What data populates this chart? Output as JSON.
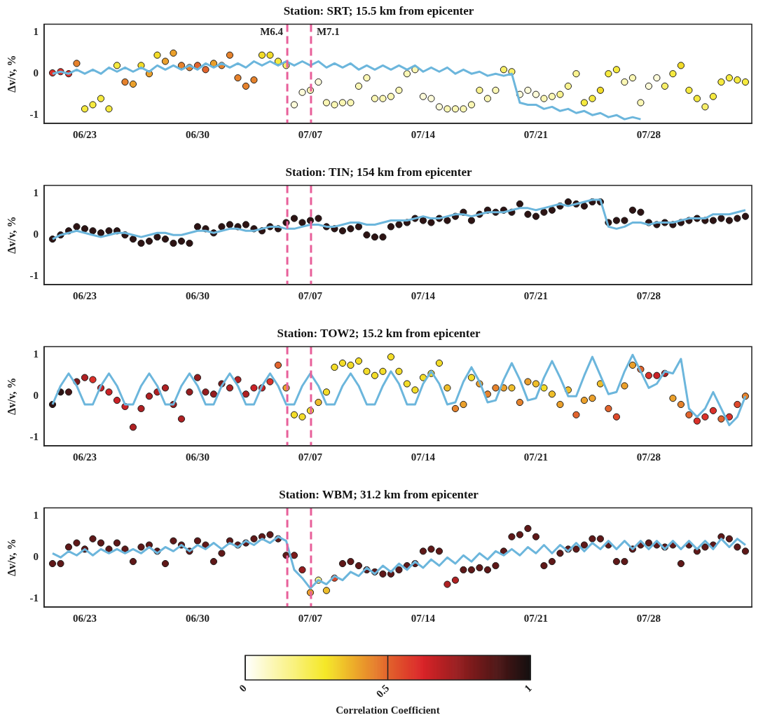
{
  "chart_data": [
    {
      "type": "scatter",
      "title": "Station: SRT; 15.5 km from epicenter",
      "ylabel": "Δv/v, %",
      "x": [
        "--06-21T00:00",
        "--06-21T12:00",
        "--06-22T00:00",
        "--06-22T12:00",
        "--06-23T00:00",
        "--06-23T12:00",
        "--06-24T00:00",
        "--06-24T12:00",
        "--06-25T00:00",
        "--06-25T12:00",
        "--06-26T00:00",
        "--06-26T12:00",
        "--06-27T00:00",
        "--06-27T12:00",
        "--06-28T00:00",
        "--06-28T12:00",
        "--06-29T00:00",
        "--06-29T12:00",
        "--06-30T00:00",
        "--06-30T12:00",
        "--07-01T00:00",
        "--07-01T12:00",
        "--07-02T00:00",
        "--07-02T12:00",
        "--07-03T00:00",
        "--07-03T12:00",
        "--07-04T00:00",
        "--07-04T12:00",
        "--07-05T00:00",
        "--07-05T12:00",
        "--07-06T00:00",
        "--07-06T12:00",
        "--07-07T00:00",
        "--07-07T12:00",
        "--07-08T00:00",
        "--07-08T12:00",
        "--07-09T00:00",
        "--07-09T12:00",
        "--07-10T00:00",
        "--07-10T12:00",
        "--07-11T00:00",
        "--07-11T12:00",
        "--07-12T00:00",
        "--07-12T12:00",
        "--07-13T00:00",
        "--07-13T12:00",
        "--07-14T00:00",
        "--07-14T12:00",
        "--07-15T00:00",
        "--07-15T12:00",
        "--07-16T00:00",
        "--07-16T12:00",
        "--07-17T00:00",
        "--07-17T12:00",
        "--07-18T00:00",
        "--07-18T12:00",
        "--07-19T00:00",
        "--07-19T12:00",
        "--07-20T00:00",
        "--07-20T12:00",
        "--07-21T00:00",
        "--07-21T12:00",
        "--07-22T00:00",
        "--07-22T12:00",
        "--07-23T00:00",
        "--07-23T12:00",
        "--07-24T00:00",
        "--07-24T12:00",
        "--07-25T00:00",
        "--07-25T12:00",
        "--07-26T00:00",
        "--07-26T12:00",
        "--07-27T00:00",
        "--07-27T12:00",
        "--07-28T00:00",
        "--07-28T12:00",
        "--07-29T00:00",
        "--07-29T12:00",
        "--07-30T00:00",
        "--07-30T12:00",
        "--07-31T00:00",
        "--07-31T12:00",
        "--08-01T00:00",
        "--08-01T12:00",
        "--08-02T00:00",
        "--08-02T12:00",
        "--08-03T00:00"
      ],
      "series": [
        {
          "marker": "circle",
          "values": [
            0.02,
            0.05,
            0,
            0.25,
            -0.85,
            -0.75,
            -0.6,
            -0.85,
            0.2,
            -0.2,
            -0.25,
            0.2,
            0,
            0.45,
            0.3,
            0.5,
            0.2,
            0.15,
            0.2,
            0.1,
            0.25,
            0.2,
            0.45,
            -0.1,
            -0.3,
            -0.15,
            0.45,
            0.45,
            0.3,
            0.2,
            -0.75,
            -0.45,
            -0.4,
            -0.2,
            -0.7,
            -0.75,
            -0.7,
            -0.7,
            -0.3,
            -0.1,
            -0.6,
            -0.6,
            -0.55,
            -0.4,
            0,
            0.1,
            -0.55,
            -0.6,
            -0.8,
            -0.85,
            -0.85,
            -0.85,
            -0.75,
            -0.4,
            -0.6,
            -0.4,
            0.1,
            0.05,
            -0.5,
            -0.4,
            -0.5,
            -0.6,
            -0.55,
            -0.5,
            -0.3,
            0,
            -0.7,
            -0.6,
            -0.4,
            0,
            0.1,
            -0.2,
            -0.1,
            -0.7,
            -0.3,
            -0.1,
            -0.3,
            0,
            0.2,
            -0.4,
            -0.6,
            -0.8,
            -0.55,
            -0.2,
            -0.1,
            -0.15,
            -0.2
          ],
          "colors": [
            "#db3029",
            "#db3029",
            "#db3029",
            "#e6822c",
            "#f6ea3f",
            "#f6ea3f",
            "#f6ea3f",
            "#f6ea3f",
            "#f6ea3f",
            "#e6822c",
            "#eba02b",
            "#f3dc28",
            "#eba02b",
            "#f3dc28",
            "#eba02b",
            "#eba02b",
            "#e6822c",
            "#e6822c",
            "#e2642d",
            "#e2642d",
            "#eba02b",
            "#e6822c",
            "#e6822c",
            "#e6822c",
            "#e6822c",
            "#e6822c",
            "#f3dc28",
            "#f3dc28",
            "#f6ea3f",
            "#f8ef69",
            "#fdfbd9",
            "#fdfbd9",
            "#fbf7b4",
            "#fdfbd9",
            "#fbf7b4",
            "#fbf7b4",
            "#fbf7b4",
            "#fbf7b4",
            "#fbf7b4",
            "#fbf7b4",
            "#fbf7b4",
            "#fbf7b4",
            "#fbf7b4",
            "#fbf7b4",
            "#fbf7b4",
            "#fbf7b4",
            "#fdfbd9",
            "#fdfbd9",
            "#fdfbd9",
            "#fbf7b4",
            "#fbf7b4",
            "#fbf7b4",
            "#fbf7b4",
            "#faf38f",
            "#fbf7b4",
            "#fbf7b4",
            "#f8ef69",
            "#f8ef69",
            "#fdfbd9",
            "#fdfbd9",
            "#fdfbd9",
            "#fbf7b4",
            "#fbf7b4",
            "#faf38f",
            "#faf38f",
            "#faf38f",
            "#f6ea3f",
            "#f6ea3f",
            "#f3dc28",
            "#f6ea3f",
            "#f6ea3f",
            "#fbf7b4",
            "#fbf7b4",
            "#fbf7b4",
            "#fdfbd9",
            "#fdfbd9",
            "#f8ef69",
            "#f6ea3f",
            "#f3dc28",
            "#f6ea3f",
            "#f6ea3f",
            "#f8ef69",
            "#f6ea3f",
            "#f6ea3f",
            "#f6ea3f",
            "#f6ea3f",
            "#f6ea3f"
          ]
        },
        {
          "type": "line",
          "color": "#6cb6dc",
          "values": [
            0,
            0.05,
            0,
            0.1,
            0,
            0.1,
            0,
            0.15,
            0.05,
            0.15,
            0.05,
            0.15,
            0.05,
            0.2,
            0.1,
            0.2,
            0.1,
            0.2,
            0.1,
            0.25,
            0.15,
            0.25,
            0.15,
            0.25,
            0.15,
            0.3,
            0.2,
            0.3,
            0.2,
            0.3,
            0.2,
            0.3,
            0.2,
            0.3,
            0.15,
            0.25,
            0.15,
            0.25,
            0.1,
            0.2,
            0.1,
            0.2,
            0.1,
            0.2,
            0.1,
            0.2,
            0.05,
            0.15,
            0.05,
            0.15,
            0,
            0.1,
            0,
            0.05,
            -0.05,
            0,
            -0.05,
            0,
            -0.7,
            -0.75,
            -0.75,
            -0.85,
            -0.8,
            -0.9,
            -0.85,
            -0.95,
            -0.9,
            -1,
            -0.95,
            -1.05,
            -1,
            -1.1,
            -1.05,
            -1.1,
            null,
            null,
            null,
            null,
            null,
            null,
            null,
            null,
            null,
            null,
            null,
            null,
            null
          ]
        }
      ],
      "xlim": [
        "--06-20T11:30",
        "--08-03T09:30"
      ],
      "xticks": [
        {
          "value": "--06-23",
          "label": "06/23"
        },
        {
          "value": "--06-30",
          "label": "06/30"
        },
        {
          "value": "--07-07",
          "label": "07/07"
        },
        {
          "value": "--07-14",
          "label": "07/14"
        },
        {
          "value": "--07-21",
          "label": "07/21"
        },
        {
          "value": "--07-28",
          "label": "07/28"
        }
      ],
      "ylim": [
        -1.2,
        1.2
      ],
      "yticks": [
        -1,
        0,
        1
      ],
      "ref_lines": [
        {
          "axis": "x",
          "value": "--07-05T13:40",
          "label": "M6.4",
          "color": "#e8609a",
          "line_style": "dashed"
        },
        {
          "axis": "x",
          "value": "--07-07T01:00",
          "label": "M7.1",
          "color": "#e8609a",
          "line_style": "dashed"
        }
      ]
    },
    {
      "type": "scatter",
      "title": "Station: TIN; 154 km from epicenter",
      "ylabel": "Δv/v, %",
      "x": [
        "--06-21T00:00",
        "--06-21T12:00",
        "--06-22T00:00",
        "--06-22T12:00",
        "--06-23T00:00",
        "--06-23T12:00",
        "--06-24T00:00",
        "--06-24T12:00",
        "--06-25T00:00",
        "--06-25T12:00",
        "--06-26T00:00",
        "--06-26T12:00",
        "--06-27T00:00",
        "--06-27T12:00",
        "--06-28T00:00",
        "--06-28T12:00",
        "--06-29T00:00",
        "--06-29T12:00",
        "--06-30T00:00",
        "--06-30T12:00",
        "--07-01T00:00",
        "--07-01T12:00",
        "--07-02T00:00",
        "--07-02T12:00",
        "--07-03T00:00",
        "--07-03T12:00",
        "--07-04T00:00",
        "--07-04T12:00",
        "--07-05T00:00",
        "--07-05T12:00",
        "--07-06T00:00",
        "--07-06T12:00",
        "--07-07T00:00",
        "--07-07T12:00",
        "--07-08T00:00",
        "--07-08T12:00",
        "--07-09T00:00",
        "--07-09T12:00",
        "--07-10T00:00",
        "--07-10T12:00",
        "--07-11T00:00",
        "--07-11T12:00",
        "--07-12T00:00",
        "--07-12T12:00",
        "--07-13T00:00",
        "--07-13T12:00",
        "--07-14T00:00",
        "--07-14T12:00",
        "--07-15T00:00",
        "--07-15T12:00",
        "--07-16T00:00",
        "--07-16T12:00",
        "--07-17T00:00",
        "--07-17T12:00",
        "--07-18T00:00",
        "--07-18T12:00",
        "--07-19T00:00",
        "--07-19T12:00",
        "--07-20T00:00",
        "--07-20T12:00",
        "--07-21T00:00",
        "--07-21T12:00",
        "--07-22T00:00",
        "--07-22T12:00",
        "--07-23T00:00",
        "--07-23T12:00",
        "--07-24T00:00",
        "--07-24T12:00",
        "--07-25T00:00",
        "--07-25T12:00",
        "--07-26T00:00",
        "--07-26T12:00",
        "--07-27T00:00",
        "--07-27T12:00",
        "--07-28T00:00",
        "--07-28T12:00",
        "--07-29T00:00",
        "--07-29T12:00",
        "--07-30T00:00",
        "--07-30T12:00",
        "--07-31T00:00",
        "--07-31T12:00",
        "--08-01T00:00",
        "--08-01T12:00",
        "--08-02T00:00",
        "--08-02T12:00",
        "--08-03T00:00"
      ],
      "series": [
        {
          "marker": "circle",
          "values": [
            -0.1,
            0,
            0.1,
            0.2,
            0.15,
            0.1,
            0.05,
            0.1,
            0.1,
            0,
            -0.1,
            -0.2,
            -0.15,
            -0.05,
            -0.1,
            -0.2,
            -0.15,
            -0.2,
            0.2,
            0.15,
            0.05,
            0.2,
            0.25,
            0.2,
            0.25,
            0.15,
            0.1,
            0.2,
            0.15,
            0.3,
            0.4,
            0.3,
            0.35,
            0.4,
            0.2,
            0.15,
            0.1,
            0.15,
            0.2,
            0,
            -0.05,
            -0.05,
            0.2,
            0.25,
            0.3,
            0.4,
            0.35,
            0.3,
            0.4,
            0.35,
            0.45,
            0.55,
            0.35,
            0.5,
            0.6,
            0.55,
            0.6,
            0.55,
            0.75,
            0.5,
            0.45,
            0.55,
            0.6,
            0.7,
            0.8,
            0.75,
            0.7,
            0.8,
            0.8,
            0.3,
            0.35,
            0.35,
            0.6,
            0.55,
            0.3,
            0.25,
            0.3,
            0.25,
            0.3,
            0.35,
            0.4,
            0.35,
            0.35,
            0.4,
            0.35,
            0.4,
            0.45
          ],
          "color": "#2d1313"
        },
        {
          "type": "line",
          "color": "#6cb6dc",
          "values": [
            -0.1,
            0,
            0.05,
            0.1,
            0.05,
            0,
            -0.05,
            0,
            0.05,
            0.05,
            0,
            -0.05,
            0,
            0.05,
            0.05,
            0,
            0,
            0.05,
            0.1,
            0.1,
            0.05,
            0.1,
            0.15,
            0.15,
            0.1,
            0.1,
            0.15,
            0.2,
            0.2,
            0.15,
            0.15,
            0.2,
            0.25,
            0.25,
            0.2,
            0.2,
            0.25,
            0.3,
            0.3,
            0.25,
            0.25,
            0.3,
            0.35,
            0.35,
            0.35,
            0.4,
            0.45,
            0.4,
            0.4,
            0.45,
            0.5,
            0.5,
            0.45,
            0.5,
            0.55,
            0.55,
            0.55,
            0.6,
            0.65,
            0.65,
            0.6,
            0.65,
            0.7,
            0.75,
            0.7,
            0.75,
            0.8,
            0.85,
            0.85,
            0.2,
            0.15,
            0.2,
            0.3,
            0.3,
            0.25,
            0.3,
            0.3,
            0.3,
            0.35,
            0.4,
            0.4,
            0.4,
            0.5,
            0.5,
            0.5,
            0.55,
            0.6
          ]
        }
      ],
      "xlim": [
        "--06-20T11:30",
        "--08-03T09:30"
      ],
      "xticks": [
        {
          "value": "--06-23",
          "label": "06/23"
        },
        {
          "value": "--06-30",
          "label": "06/30"
        },
        {
          "value": "--07-07",
          "label": "07/07"
        },
        {
          "value": "--07-14",
          "label": "07/14"
        },
        {
          "value": "--07-21",
          "label": "07/21"
        },
        {
          "value": "--07-28",
          "label": "07/28"
        }
      ],
      "ylim": [
        -1.2,
        1.2
      ],
      "yticks": [
        -1,
        0,
        1
      ],
      "ref_lines": [
        {
          "axis": "x",
          "value": "--07-05T13:40",
          "color": "#e8609a",
          "line_style": "dashed"
        },
        {
          "axis": "x",
          "value": "--07-07T01:00",
          "color": "#e8609a",
          "line_style": "dashed"
        }
      ]
    },
    {
      "type": "scatter",
      "title": "Station: TOW2; 15.2 km from epicenter",
      "ylabel": "Δv/v, %",
      "x": [
        "--06-21T00:00",
        "--06-21T12:00",
        "--06-22T00:00",
        "--06-22T12:00",
        "--06-23T00:00",
        "--06-23T12:00",
        "--06-24T00:00",
        "--06-24T12:00",
        "--06-25T00:00",
        "--06-25T12:00",
        "--06-26T00:00",
        "--06-26T12:00",
        "--06-27T00:00",
        "--06-27T12:00",
        "--06-28T00:00",
        "--06-28T12:00",
        "--06-29T00:00",
        "--06-29T12:00",
        "--06-30T00:00",
        "--06-30T12:00",
        "--07-01T00:00",
        "--07-01T12:00",
        "--07-02T00:00",
        "--07-02T12:00",
        "--07-03T00:00",
        "--07-03T12:00",
        "--07-04T00:00",
        "--07-04T12:00",
        "--07-05T00:00",
        "--07-05T12:00",
        "--07-06T00:00",
        "--07-06T12:00",
        "--07-07T00:00",
        "--07-07T12:00",
        "--07-08T00:00",
        "--07-08T12:00",
        "--07-09T00:00",
        "--07-09T12:00",
        "--07-10T00:00",
        "--07-10T12:00",
        "--07-11T00:00",
        "--07-11T12:00",
        "--07-12T00:00",
        "--07-12T12:00",
        "--07-13T00:00",
        "--07-13T12:00",
        "--07-14T00:00",
        "--07-14T12:00",
        "--07-15T00:00",
        "--07-15T12:00",
        "--07-16T00:00",
        "--07-16T12:00",
        "--07-17T00:00",
        "--07-17T12:00",
        "--07-18T00:00",
        "--07-18T12:00",
        "--07-19T00:00",
        "--07-19T12:00",
        "--07-20T00:00",
        "--07-20T12:00",
        "--07-21T00:00",
        "--07-21T12:00",
        "--07-22T00:00",
        "--07-22T12:00",
        "--07-23T00:00",
        "--07-23T12:00",
        "--07-24T00:00",
        "--07-24T12:00",
        "--07-25T00:00",
        "--07-25T12:00",
        "--07-26T00:00",
        "--07-26T12:00",
        "--07-27T00:00",
        "--07-27T12:00",
        "--07-28T00:00",
        "--07-28T12:00",
        "--07-29T00:00",
        "--07-29T12:00",
        "--07-30T00:00",
        "--07-30T12:00",
        "--07-31T00:00",
        "--07-31T12:00",
        "--08-01T00:00",
        "--08-01T12:00",
        "--08-02T00:00",
        "--08-02T12:00",
        "--08-03T00:00"
      ],
      "series": [
        {
          "marker": "circle",
          "values": [
            -0.2,
            0.1,
            0.1,
            0.35,
            0.45,
            0.4,
            0.2,
            0.1,
            -0.1,
            -0.25,
            -0.75,
            -0.3,
            0,
            0.1,
            0.2,
            -0.2,
            -0.55,
            0.1,
            0.45,
            0.1,
            0.05,
            0.3,
            0.2,
            0.4,
            0.05,
            0.2,
            0.2,
            0.35,
            0.75,
            0.2,
            -0.45,
            -0.5,
            -0.35,
            -0.15,
            0.1,
            0.7,
            0.8,
            0.75,
            0.85,
            0.6,
            0.5,
            0.6,
            0.95,
            0.6,
            0.3,
            0.15,
            0.45,
            0.55,
            0.8,
            0.2,
            -0.3,
            -0.2,
            0.45,
            0.3,
            0.05,
            0.2,
            0.2,
            0.2,
            -0.15,
            0.35,
            0.3,
            0.2,
            0.05,
            -0.2,
            0.15,
            -0.45,
            -0.1,
            -0.05,
            0.3,
            -0.3,
            -0.5,
            0.25,
            0.75,
            0.65,
            0.5,
            0.5,
            0.55,
            -0.05,
            -0.2,
            -0.45,
            -0.6,
            -0.5,
            -0.35,
            -0.55,
            -0.5,
            -0.2,
            0
          ],
          "colors": [
            "#2d1313",
            "#2d1313",
            "#461515",
            "#7a1b1b",
            "#af2022",
            "#db3029",
            "#ca2226",
            "#ca2226",
            "#ca2226",
            "#ca2226",
            "#af2022",
            "#af2022",
            "#af2022",
            "#af2022",
            "#af2022",
            "#951d1f",
            "#af2022",
            "#951d1f",
            "#951d1f",
            "#951d1f",
            "#951d1f",
            "#7a1b1b",
            "#af2022",
            "#af2022",
            "#af2022",
            "#ca2226",
            "#ca2226",
            "#db3029",
            "#e2642d",
            "#eba02b",
            "#f3dc28",
            "#f3dc28",
            "#f3dc28",
            "#efbe2a",
            "#f3dc28",
            "#f3dc28",
            "#f3dc28",
            "#f3dc28",
            "#f3dc28",
            "#f3dc28",
            "#f3dc28",
            "#f3dc28",
            "#f3dc28",
            "#f3dc28",
            "#f3dc28",
            "#f3dc28",
            "#f3dc28",
            "#f3dc28",
            "#f3dc28",
            "#efbe2a",
            "#e6822c",
            "#eba02b",
            "#f3dc28",
            "#eba02b",
            "#e6822c",
            "#e6822c",
            "#eba02b",
            "#efbe2a",
            "#e6822c",
            "#eba02b",
            "#efbe2a",
            "#f3dc28",
            "#efbe2a",
            "#eba02b",
            "#efbe2a",
            "#e2642d",
            "#eba02b",
            "#eba02b",
            "#efbe2a",
            "#e2642d",
            "#df492b",
            "#eba02b",
            "#eba02b",
            "#e2642d",
            "#db3029",
            "#ca2226",
            "#af2022",
            "#eba02b",
            "#e6822c",
            "#e2642d",
            "#db3029",
            "#db3029",
            "#db3029",
            "#e2642d",
            "#db3029",
            "#df492b",
            "#e6822c"
          ]
        },
        {
          "type": "line",
          "color": "#6cb6dc",
          "values": [
            -0.2,
            0.25,
            0.55,
            0.25,
            -0.2,
            -0.2,
            0.25,
            0.55,
            0.25,
            -0.2,
            -0.2,
            0.25,
            0.55,
            0.25,
            -0.2,
            -0.2,
            0.25,
            0.55,
            0.25,
            -0.2,
            -0.2,
            0.25,
            0.55,
            0.25,
            -0.2,
            -0.2,
            0.25,
            0.55,
            0.25,
            -0.2,
            -0.2,
            0.25,
            0.55,
            0.25,
            -0.2,
            -0.2,
            0.25,
            0.55,
            0.25,
            -0.2,
            -0.2,
            0.25,
            0.6,
            0.3,
            -0.2,
            -0.2,
            0.3,
            0.6,
            0.3,
            -0.2,
            -0.15,
            0.35,
            0.7,
            0.35,
            -0.15,
            -0.1,
            0.4,
            0.8,
            0.4,
            -0.1,
            -0.05,
            0.45,
            0.85,
            0.45,
            0,
            0,
            0.5,
            0.95,
            0.5,
            0.05,
            0.1,
            0.6,
            1,
            0.6,
            0.2,
            0.3,
            0.6,
            0.55,
            0.9,
            -0.3,
            -0.5,
            -0.3,
            0.1,
            -0.3,
            -0.7,
            -0.5,
            0
          ]
        }
      ],
      "xlim": [
        "--06-20T11:30",
        "--08-03T09:30"
      ],
      "xticks": [
        {
          "value": "--06-23",
          "label": "06/23"
        },
        {
          "value": "--06-30",
          "label": "06/30"
        },
        {
          "value": "--07-07",
          "label": "07/07"
        },
        {
          "value": "--07-14",
          "label": "07/14"
        },
        {
          "value": "--07-21",
          "label": "07/21"
        },
        {
          "value": "--07-28",
          "label": "07/28"
        }
      ],
      "ylim": [
        -1.2,
        1.2
      ],
      "yticks": [
        -1,
        0,
        1
      ],
      "ref_lines": [
        {
          "axis": "x",
          "value": "--07-05T13:40",
          "color": "#e8609a",
          "line_style": "dashed"
        },
        {
          "axis": "x",
          "value": "--07-07T01:00",
          "color": "#e8609a",
          "line_style": "dashed"
        }
      ]
    },
    {
      "type": "scatter",
      "title": "Station: WBM; 31.2 km from epicenter",
      "ylabel": "Δv/v, %",
      "x": [
        "--06-21T00:00",
        "--06-21T12:00",
        "--06-22T00:00",
        "--06-22T12:00",
        "--06-23T00:00",
        "--06-23T12:00",
        "--06-24T00:00",
        "--06-24T12:00",
        "--06-25T00:00",
        "--06-25T12:00",
        "--06-26T00:00",
        "--06-26T12:00",
        "--06-27T00:00",
        "--06-27T12:00",
        "--06-28T00:00",
        "--06-28T12:00",
        "--06-29T00:00",
        "--06-29T12:00",
        "--06-30T00:00",
        "--06-30T12:00",
        "--07-01T00:00",
        "--07-01T12:00",
        "--07-02T00:00",
        "--07-02T12:00",
        "--07-03T00:00",
        "--07-03T12:00",
        "--07-04T00:00",
        "--07-04T12:00",
        "--07-05T00:00",
        "--07-05T12:00",
        "--07-06T00:00",
        "--07-06T12:00",
        "--07-07T00:00",
        "--07-07T12:00",
        "--07-08T00:00",
        "--07-08T12:00",
        "--07-09T00:00",
        "--07-09T12:00",
        "--07-10T00:00",
        "--07-10T12:00",
        "--07-11T00:00",
        "--07-11T12:00",
        "--07-12T00:00",
        "--07-12T12:00",
        "--07-13T00:00",
        "--07-13T12:00",
        "--07-14T00:00",
        "--07-14T12:00",
        "--07-15T00:00",
        "--07-15T12:00",
        "--07-16T00:00",
        "--07-16T12:00",
        "--07-17T00:00",
        "--07-17T12:00",
        "--07-18T00:00",
        "--07-18T12:00",
        "--07-19T00:00",
        "--07-19T12:00",
        "--07-20T00:00",
        "--07-20T12:00",
        "--07-21T00:00",
        "--07-21T12:00",
        "--07-22T00:00",
        "--07-22T12:00",
        "--07-23T00:00",
        "--07-23T12:00",
        "--07-24T00:00",
        "--07-24T12:00",
        "--07-25T00:00",
        "--07-25T12:00",
        "--07-26T00:00",
        "--07-26T12:00",
        "--07-27T00:00",
        "--07-27T12:00",
        "--07-28T00:00",
        "--07-28T12:00",
        "--07-29T00:00",
        "--07-29T12:00",
        "--07-30T00:00",
        "--07-30T12:00",
        "--07-31T00:00",
        "--07-31T12:00",
        "--08-01T00:00",
        "--08-01T12:00",
        "--08-02T00:00",
        "--08-02T12:00",
        "--08-03T00:00"
      ],
      "series": [
        {
          "marker": "circle",
          "values": [
            -0.15,
            -0.15,
            0.25,
            0.35,
            0.2,
            0.45,
            0.35,
            0.2,
            0.35,
            0.2,
            -0.1,
            0.25,
            0.3,
            0.15,
            -0.15,
            0.4,
            0.3,
            0.15,
            0.4,
            0.3,
            -0.1,
            0.1,
            0.4,
            0.3,
            0.35,
            0.45,
            0.5,
            0.55,
            0.45,
            0.05,
            0.05,
            -0.3,
            -0.85,
            -0.55,
            -0.8,
            -0.5,
            -0.15,
            -0.1,
            -0.2,
            -0.3,
            -0.35,
            -0.4,
            -0.4,
            -0.3,
            -0.2,
            -0.15,
            0.15,
            0.2,
            0.15,
            -0.65,
            -0.55,
            -0.3,
            -0.3,
            -0.25,
            -0.3,
            -0.2,
            0.15,
            0.5,
            0.55,
            0.7,
            0.5,
            -0.2,
            -0.1,
            0.1,
            0.2,
            0.2,
            0.3,
            0.45,
            0.45,
            0.3,
            -0.1,
            -0.1,
            0.2,
            0.3,
            0.35,
            0.3,
            0.25,
            0.3,
            -0.15,
            0.3,
            0.15,
            0.25,
            0.3,
            0.5,
            0.45,
            0.25,
            0.15
          ],
          "colors": [
            "#5f1818",
            "#5f1818",
            "#5f1818",
            "#5f1818",
            "#5f1818",
            "#5f1818",
            "#5f1818",
            "#5f1818",
            "#5f1818",
            "#5f1818",
            "#5f1818",
            "#5f1818",
            "#5f1818",
            "#5f1818",
            "#5f1818",
            "#5f1818",
            "#5f1818",
            "#5f1818",
            "#5f1818",
            "#5f1818",
            "#5f1818",
            "#5f1818",
            "#5f1818",
            "#5f1818",
            "#5f1818",
            "#5f1818",
            "#5f1818",
            "#5f1818",
            "#5f1818",
            "#5f1818",
            "#7a1b1b",
            "#951d1f",
            "#eba02b",
            "#faf38f",
            "#efbe2a",
            "#df492b",
            "#5f1818",
            "#5f1818",
            "#5f1818",
            "#5f1818",
            "#5f1818",
            "#5f1818",
            "#5f1818",
            "#5f1818",
            "#5f1818",
            "#5f1818",
            "#5f1818",
            "#5f1818",
            "#5f1818",
            "#af2022",
            "#af2022",
            "#5f1818",
            "#5f1818",
            "#5f1818",
            "#5f1818",
            "#5f1818",
            "#5f1818",
            "#5f1818",
            "#5f1818",
            "#5f1818",
            "#5f1818",
            "#5f1818",
            "#5f1818",
            "#5f1818",
            "#5f1818",
            "#5f1818",
            "#5f1818",
            "#5f1818",
            "#5f1818",
            "#5f1818",
            "#5f1818",
            "#5f1818",
            "#5f1818",
            "#5f1818",
            "#5f1818",
            "#5f1818",
            "#5f1818",
            "#5f1818",
            "#5f1818",
            "#5f1818",
            "#5f1818",
            "#5f1818",
            "#5f1818",
            "#5f1818",
            "#5f1818",
            "#5f1818",
            "#5f1818"
          ]
        },
        {
          "type": "line",
          "color": "#6cb6dc",
          "values": [
            0.1,
            0,
            0.15,
            0.05,
            0.2,
            0.05,
            0.2,
            0.1,
            0.2,
            0.1,
            0.2,
            0.1,
            0.25,
            0.1,
            0.25,
            0.15,
            0.3,
            0.15,
            0.3,
            0.2,
            0.35,
            0.2,
            0.35,
            0.25,
            0.4,
            0.3,
            0.45,
            0.35,
            0.5,
            0.4,
            -0.3,
            -0.5,
            -0.75,
            -0.55,
            -0.65,
            -0.45,
            -0.55,
            -0.35,
            -0.45,
            -0.25,
            -0.4,
            -0.2,
            -0.35,
            -0.15,
            -0.3,
            -0.1,
            -0.25,
            -0.05,
            -0.2,
            0,
            -0.15,
            0.05,
            -0.1,
            0.1,
            -0.05,
            0.15,
            0.05,
            0.2,
            0.05,
            0.25,
            0.1,
            0.3,
            0.1,
            0.3,
            0.15,
            0.35,
            0.15,
            0.35,
            0.2,
            0.4,
            0.2,
            0.4,
            0.2,
            0.4,
            0.2,
            0.4,
            0.2,
            0.4,
            0.2,
            0.4,
            0.2,
            0.4,
            0.2,
            0.45,
            0.25,
            0.45,
            0.3
          ]
        }
      ],
      "xlim": [
        "--06-20T11:30",
        "--08-03T09:30"
      ],
      "xticks": [
        {
          "value": "--06-23",
          "label": "06/23"
        },
        {
          "value": "--06-30",
          "label": "06/30"
        },
        {
          "value": "--07-07",
          "label": "07/07"
        },
        {
          "value": "--07-14",
          "label": "07/14"
        },
        {
          "value": "--07-21",
          "label": "07/21"
        },
        {
          "value": "--07-28",
          "label": "07/28"
        }
      ],
      "ylim": [
        -1.2,
        1.2
      ],
      "yticks": [
        -1,
        0,
        1
      ],
      "clim": [
        0,
        1
      ],
      "cticks": [
        0,
        0.5,
        1
      ],
      "clabel": "Correlation Coefficient",
      "ref_lines": [
        {
          "axis": "x",
          "value": "--07-05T13:40",
          "color": "#e8609a",
          "line_style": "dashed"
        },
        {
          "axis": "x",
          "value": "--07-07T01:00",
          "color": "#e8609a",
          "line_style": "dashed"
        }
      ]
    }
  ]
}
